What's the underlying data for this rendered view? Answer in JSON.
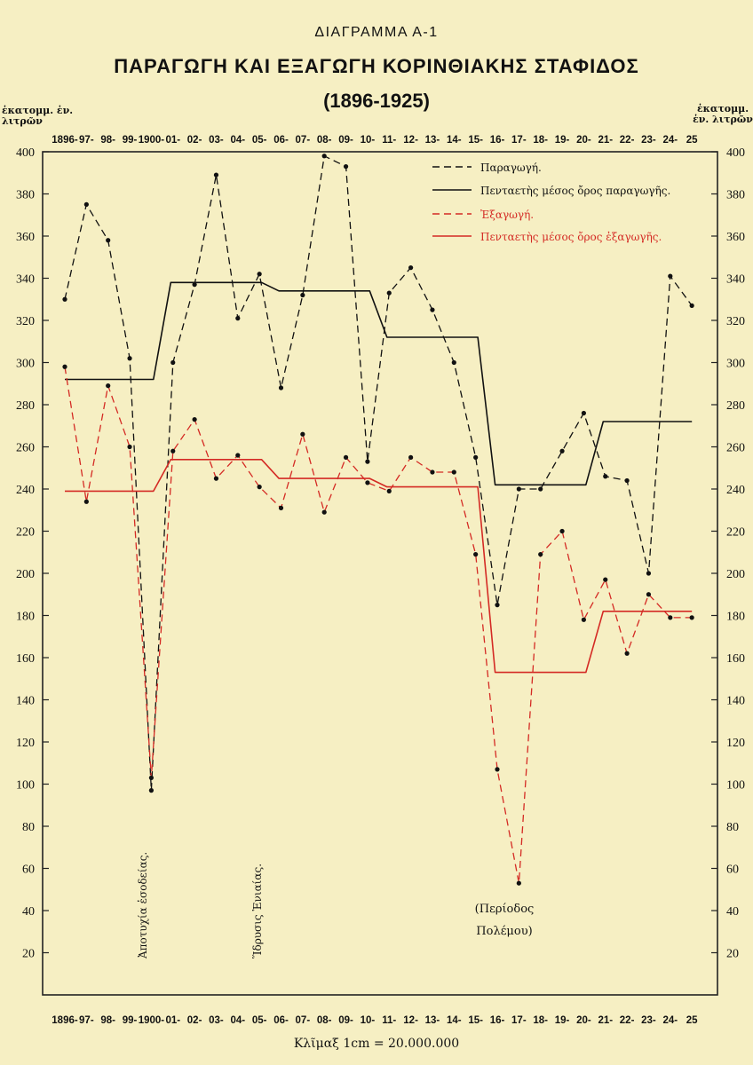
{
  "chart_data": {
    "type": "line",
    "supertitle": "ΔΙΑΓΡΑΜΜΑ Α-1",
    "title": "ΠΑΡΑΓΩΓΗ ΚΑΙ ΕΞΑΓΩΓΗ ΚΟΡΙΝΘΙΑΚΗΣ ΣΤΑΦΙΔΟΣ",
    "subtitle": "(1896-1925)",
    "ylabel_left": "ἑκατομμ. ἑν. λιτρῶν",
    "ylabel_right": "ἑκατομμ. ἑν. λιτρῶν",
    "ylim": [
      0,
      400
    ],
    "yticks": [
      20,
      40,
      60,
      80,
      100,
      120,
      140,
      160,
      180,
      200,
      220,
      240,
      260,
      280,
      300,
      320,
      340,
      360,
      380,
      400
    ],
    "grid": false,
    "legend_position": "top-right",
    "x": [
      "1896",
      "97",
      "98",
      "99",
      "1900",
      "01",
      "02",
      "03",
      "04",
      "05",
      "06",
      "07",
      "08",
      "09",
      "10",
      "11",
      "12",
      "13",
      "14",
      "15",
      "16",
      "17",
      "18",
      "19",
      "20",
      "21",
      "22",
      "23",
      "24",
      "25"
    ],
    "x_tick_labels": [
      "1896-",
      "97-",
      "98-",
      "99-",
      "1900-",
      "01-",
      "02-",
      "03-",
      "04-",
      "05-",
      "06-",
      "07-",
      "08-",
      "09-",
      "10-",
      "11-",
      "12-",
      "13-",
      "14-",
      "15-",
      "16-",
      "17-",
      "18-",
      "19-",
      "20-",
      "21-",
      "22-",
      "23-",
      "24-",
      "25"
    ],
    "series": [
      {
        "name": "Παραγωγή.",
        "color": "#111111",
        "style": "dashed",
        "values": [
          330,
          375,
          358,
          302,
          97,
          300,
          337,
          389,
          321,
          342,
          288,
          332,
          398,
          393,
          253,
          333,
          345,
          325,
          300,
          255,
          185,
          240,
          240,
          258,
          276,
          246,
          244,
          200,
          341,
          327
        ]
      },
      {
        "name": "Πενταετὴς μέσος ὄρος παραγωγῆς.",
        "color": "#111111",
        "style": "solid",
        "values": [
          292,
          292,
          292,
          292,
          292,
          338,
          338,
          338,
          338,
          338,
          334,
          334,
          334,
          334,
          334,
          312,
          312,
          312,
          312,
          312,
          242,
          242,
          242,
          242,
          242,
          272,
          272,
          272,
          272,
          272
        ]
      },
      {
        "name": "Ἐξαγωγή.",
        "color": "#d42a24",
        "style": "dashed",
        "values": [
          298,
          234,
          289,
          260,
          103,
          258,
          273,
          245,
          256,
          241,
          231,
          266,
          229,
          255,
          243,
          239,
          255,
          248,
          248,
          209,
          107,
          53,
          209,
          220,
          178,
          197,
          162,
          190,
          179,
          179
        ]
      },
      {
        "name": "Πενταετὴς μέσος ὄρος ἐξαγωγῆς.",
        "color": "#d42a24",
        "style": "solid",
        "values": [
          239,
          239,
          239,
          239,
          239,
          254,
          254,
          254,
          254,
          254,
          245,
          245,
          245,
          245,
          245,
          241,
          241,
          241,
          241,
          241,
          153,
          153,
          153,
          153,
          153,
          182,
          182,
          182,
          182,
          182
        ]
      }
    ],
    "annotations": [
      {
        "text": "Ἀποτυχία ἑσοδείας.",
        "x": "1900"
      },
      {
        "text": "Ἵδρυσις Ἑνιαίας.",
        "x": "05"
      },
      {
        "text": "(Περίοδος",
        "x": "17"
      },
      {
        "text": "Πολέμου)",
        "x": "17"
      }
    ],
    "scale_note": "Κλῖμαξ 1cm = 20.000.000"
  }
}
